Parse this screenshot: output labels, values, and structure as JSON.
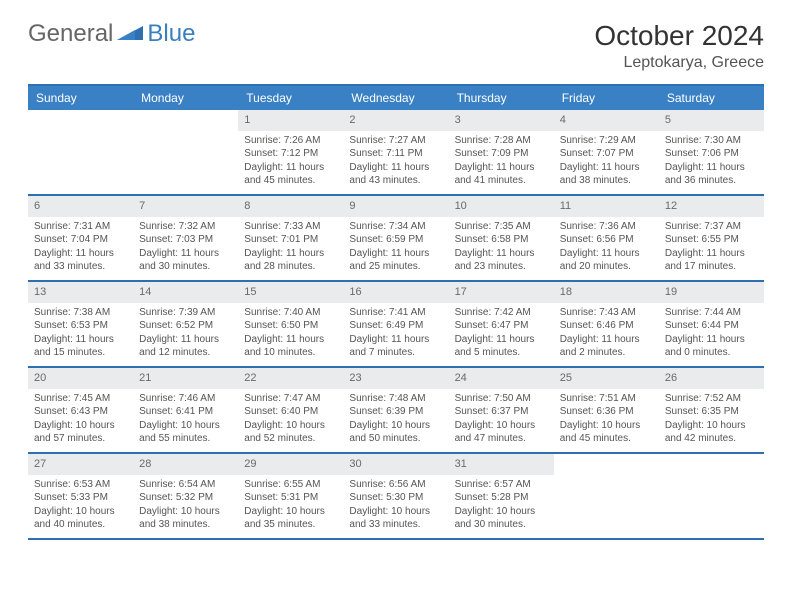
{
  "brand": {
    "general": "General",
    "blue": "Blue"
  },
  "title": "October 2024",
  "location": "Leptokarya, Greece",
  "colors": {
    "header_bg": "#3a80c4",
    "rule": "#2d6fb0",
    "daynum_bg": "#e9ebec",
    "text": "#555555",
    "brand_gray": "#666666",
    "brand_blue": "#3a7fc0"
  },
  "dayNames": [
    "Sunday",
    "Monday",
    "Tuesday",
    "Wednesday",
    "Thursday",
    "Friday",
    "Saturday"
  ],
  "weeks": [
    [
      {
        "n": "",
        "sr": "",
        "ss": "",
        "dl": ""
      },
      {
        "n": "",
        "sr": "",
        "ss": "",
        "dl": ""
      },
      {
        "n": "1",
        "sr": "Sunrise: 7:26 AM",
        "ss": "Sunset: 7:12 PM",
        "dl": "Daylight: 11 hours and 45 minutes."
      },
      {
        "n": "2",
        "sr": "Sunrise: 7:27 AM",
        "ss": "Sunset: 7:11 PM",
        "dl": "Daylight: 11 hours and 43 minutes."
      },
      {
        "n": "3",
        "sr": "Sunrise: 7:28 AM",
        "ss": "Sunset: 7:09 PM",
        "dl": "Daylight: 11 hours and 41 minutes."
      },
      {
        "n": "4",
        "sr": "Sunrise: 7:29 AM",
        "ss": "Sunset: 7:07 PM",
        "dl": "Daylight: 11 hours and 38 minutes."
      },
      {
        "n": "5",
        "sr": "Sunrise: 7:30 AM",
        "ss": "Sunset: 7:06 PM",
        "dl": "Daylight: 11 hours and 36 minutes."
      }
    ],
    [
      {
        "n": "6",
        "sr": "Sunrise: 7:31 AM",
        "ss": "Sunset: 7:04 PM",
        "dl": "Daylight: 11 hours and 33 minutes."
      },
      {
        "n": "7",
        "sr": "Sunrise: 7:32 AM",
        "ss": "Sunset: 7:03 PM",
        "dl": "Daylight: 11 hours and 30 minutes."
      },
      {
        "n": "8",
        "sr": "Sunrise: 7:33 AM",
        "ss": "Sunset: 7:01 PM",
        "dl": "Daylight: 11 hours and 28 minutes."
      },
      {
        "n": "9",
        "sr": "Sunrise: 7:34 AM",
        "ss": "Sunset: 6:59 PM",
        "dl": "Daylight: 11 hours and 25 minutes."
      },
      {
        "n": "10",
        "sr": "Sunrise: 7:35 AM",
        "ss": "Sunset: 6:58 PM",
        "dl": "Daylight: 11 hours and 23 minutes."
      },
      {
        "n": "11",
        "sr": "Sunrise: 7:36 AM",
        "ss": "Sunset: 6:56 PM",
        "dl": "Daylight: 11 hours and 20 minutes."
      },
      {
        "n": "12",
        "sr": "Sunrise: 7:37 AM",
        "ss": "Sunset: 6:55 PM",
        "dl": "Daylight: 11 hours and 17 minutes."
      }
    ],
    [
      {
        "n": "13",
        "sr": "Sunrise: 7:38 AM",
        "ss": "Sunset: 6:53 PM",
        "dl": "Daylight: 11 hours and 15 minutes."
      },
      {
        "n": "14",
        "sr": "Sunrise: 7:39 AM",
        "ss": "Sunset: 6:52 PM",
        "dl": "Daylight: 11 hours and 12 minutes."
      },
      {
        "n": "15",
        "sr": "Sunrise: 7:40 AM",
        "ss": "Sunset: 6:50 PM",
        "dl": "Daylight: 11 hours and 10 minutes."
      },
      {
        "n": "16",
        "sr": "Sunrise: 7:41 AM",
        "ss": "Sunset: 6:49 PM",
        "dl": "Daylight: 11 hours and 7 minutes."
      },
      {
        "n": "17",
        "sr": "Sunrise: 7:42 AM",
        "ss": "Sunset: 6:47 PM",
        "dl": "Daylight: 11 hours and 5 minutes."
      },
      {
        "n": "18",
        "sr": "Sunrise: 7:43 AM",
        "ss": "Sunset: 6:46 PM",
        "dl": "Daylight: 11 hours and 2 minutes."
      },
      {
        "n": "19",
        "sr": "Sunrise: 7:44 AM",
        "ss": "Sunset: 6:44 PM",
        "dl": "Daylight: 11 hours and 0 minutes."
      }
    ],
    [
      {
        "n": "20",
        "sr": "Sunrise: 7:45 AM",
        "ss": "Sunset: 6:43 PM",
        "dl": "Daylight: 10 hours and 57 minutes."
      },
      {
        "n": "21",
        "sr": "Sunrise: 7:46 AM",
        "ss": "Sunset: 6:41 PM",
        "dl": "Daylight: 10 hours and 55 minutes."
      },
      {
        "n": "22",
        "sr": "Sunrise: 7:47 AM",
        "ss": "Sunset: 6:40 PM",
        "dl": "Daylight: 10 hours and 52 minutes."
      },
      {
        "n": "23",
        "sr": "Sunrise: 7:48 AM",
        "ss": "Sunset: 6:39 PM",
        "dl": "Daylight: 10 hours and 50 minutes."
      },
      {
        "n": "24",
        "sr": "Sunrise: 7:50 AM",
        "ss": "Sunset: 6:37 PM",
        "dl": "Daylight: 10 hours and 47 minutes."
      },
      {
        "n": "25",
        "sr": "Sunrise: 7:51 AM",
        "ss": "Sunset: 6:36 PM",
        "dl": "Daylight: 10 hours and 45 minutes."
      },
      {
        "n": "26",
        "sr": "Sunrise: 7:52 AM",
        "ss": "Sunset: 6:35 PM",
        "dl": "Daylight: 10 hours and 42 minutes."
      }
    ],
    [
      {
        "n": "27",
        "sr": "Sunrise: 6:53 AM",
        "ss": "Sunset: 5:33 PM",
        "dl": "Daylight: 10 hours and 40 minutes."
      },
      {
        "n": "28",
        "sr": "Sunrise: 6:54 AM",
        "ss": "Sunset: 5:32 PM",
        "dl": "Daylight: 10 hours and 38 minutes."
      },
      {
        "n": "29",
        "sr": "Sunrise: 6:55 AM",
        "ss": "Sunset: 5:31 PM",
        "dl": "Daylight: 10 hours and 35 minutes."
      },
      {
        "n": "30",
        "sr": "Sunrise: 6:56 AM",
        "ss": "Sunset: 5:30 PM",
        "dl": "Daylight: 10 hours and 33 minutes."
      },
      {
        "n": "31",
        "sr": "Sunrise: 6:57 AM",
        "ss": "Sunset: 5:28 PM",
        "dl": "Daylight: 10 hours and 30 minutes."
      },
      {
        "n": "",
        "sr": "",
        "ss": "",
        "dl": ""
      },
      {
        "n": "",
        "sr": "",
        "ss": "",
        "dl": ""
      }
    ]
  ]
}
